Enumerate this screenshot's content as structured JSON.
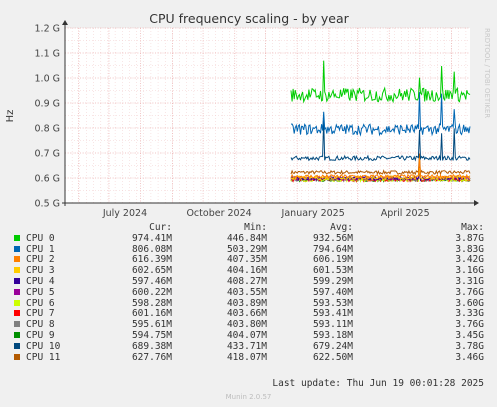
{
  "chart_data": {
    "type": "line",
    "title": "CPU frequency scaling - by year",
    "ylabel": "Hz",
    "watermark": "RRDTOOL / TOBI OETIKER",
    "ylim": [
      0.5,
      1.2
    ],
    "y_ticks": [
      "0.5 G",
      "0.6 G",
      "0.7 G",
      "0.8 G",
      "0.9 G",
      "1.0 G",
      "1.1 G",
      "1.2 G"
    ],
    "y_tick_values": [
      0.5,
      0.6,
      0.7,
      0.8,
      0.9,
      1.0,
      1.1,
      1.2
    ],
    "x_range": [
      "2024-05-19",
      "2025-06-19"
    ],
    "x_ticks": [
      {
        "label": "July 2024",
        "date": "2024-07-01"
      },
      {
        "label": "October 2024",
        "date": "2024-10-01"
      },
      {
        "label": "January 2025",
        "date": "2025-01-01"
      },
      {
        "label": "April 2025",
        "date": "2025-04-01"
      }
    ],
    "data_start": "2024-12-26",
    "grid": true,
    "columns": [
      "Cur:",
      "Min:",
      "Avg:",
      "Max:"
    ],
    "series": [
      {
        "name": "CPU 0",
        "color": "#00cc00",
        "cur": "974.41M",
        "min": "446.84M",
        "avg": "932.56M",
        "max": "3.87G",
        "level": 0.9326
      },
      {
        "name": "CPU 1",
        "color": "#0066b3",
        "cur": "806.08M",
        "min": "503.29M",
        "avg": "794.64M",
        "max": "3.83G",
        "level": 0.7946
      },
      {
        "name": "CPU 2",
        "color": "#ff8000",
        "cur": "616.39M",
        "min": "407.35M",
        "avg": "606.19M",
        "max": "3.42G",
        "level": 0.6062
      },
      {
        "name": "CPU 3",
        "color": "#ffcc00",
        "cur": "602.65M",
        "min": "404.16M",
        "avg": "601.53M",
        "max": "3.16G",
        "level": 0.6015
      },
      {
        "name": "CPU 4",
        "color": "#330099",
        "cur": "597.46M",
        "min": "408.27M",
        "avg": "599.29M",
        "max": "3.31G",
        "level": 0.5993
      },
      {
        "name": "CPU 5",
        "color": "#990099",
        "cur": "600.22M",
        "min": "403.55M",
        "avg": "597.40M",
        "max": "3.76G",
        "level": 0.5974
      },
      {
        "name": "CPU 6",
        "color": "#ccff00",
        "cur": "598.28M",
        "min": "403.89M",
        "avg": "593.53M",
        "max": "3.60G",
        "level": 0.5935
      },
      {
        "name": "CPU 7",
        "color": "#ff0000",
        "cur": "601.16M",
        "min": "403.66M",
        "avg": "593.41M",
        "max": "3.33G",
        "level": 0.5934
      },
      {
        "name": "CPU 8",
        "color": "#808080",
        "cur": "595.61M",
        "min": "403.80M",
        "avg": "593.11M",
        "max": "3.76G",
        "level": 0.5931
      },
      {
        "name": "CPU 9",
        "color": "#008f00",
        "cur": "594.75M",
        "min": "404.07M",
        "avg": "593.18M",
        "max": "3.45G",
        "level": 0.5932
      },
      {
        "name": "CPU 10",
        "color": "#00487d",
        "cur": "689.38M",
        "min": "433.71M",
        "avg": "679.24M",
        "max": "3.78G",
        "level": 0.6792
      },
      {
        "name": "CPU 11",
        "color": "#b35a00",
        "cur": "627.76M",
        "min": "418.07M",
        "avg": "622.50M",
        "max": "3.46G",
        "level": 0.6225
      }
    ]
  },
  "footer": {
    "last_update": "Last update: Thu Jun 19 00:01:28 2025",
    "munin": "Munin 2.0.57"
  }
}
